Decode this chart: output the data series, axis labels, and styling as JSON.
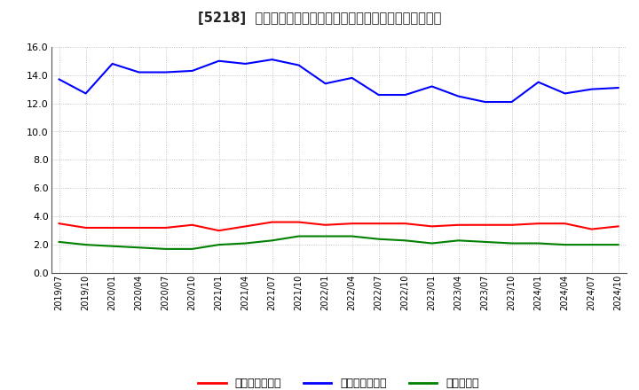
{
  "title": "[5218]  売上債権回転率、買入債務回転率、在庫回転率の推移",
  "x_labels": [
    "2019/07",
    "2019/10",
    "2020/01",
    "2020/04",
    "2020/07",
    "2020/10",
    "2021/01",
    "2021/04",
    "2021/07",
    "2021/10",
    "2022/01",
    "2022/04",
    "2022/07",
    "2022/10",
    "2023/01",
    "2023/04",
    "2023/07",
    "2023/10",
    "2024/01",
    "2024/04",
    "2024/07",
    "2024/10"
  ],
  "blue_values": [
    13.7,
    12.7,
    14.8,
    14.2,
    14.2,
    14.3,
    15.0,
    14.8,
    15.1,
    14.7,
    13.4,
    13.8,
    12.6,
    12.6,
    13.2,
    12.5,
    12.1,
    12.1,
    13.5,
    12.7,
    13.0,
    13.1
  ],
  "red_values": [
    3.5,
    3.2,
    3.2,
    3.2,
    3.2,
    3.4,
    3.0,
    3.3,
    3.6,
    3.6,
    3.4,
    3.5,
    3.5,
    3.5,
    3.3,
    3.4,
    3.4,
    3.4,
    3.5,
    3.5,
    3.1,
    3.3
  ],
  "green_values": [
    2.2,
    2.0,
    1.9,
    1.8,
    1.7,
    1.7,
    2.0,
    2.1,
    2.3,
    2.6,
    2.6,
    2.6,
    2.4,
    2.3,
    2.1,
    2.3,
    2.2,
    2.1,
    2.1,
    2.0,
    2.0,
    2.0
  ],
  "blue_color": "#0000ff",
  "red_color": "#ff0000",
  "green_color": "#008000",
  "ylim": [
    0.0,
    16.0
  ],
  "yticks": [
    0.0,
    2.0,
    4.0,
    6.0,
    8.0,
    10.0,
    12.0,
    14.0,
    16.0
  ],
  "legend_labels": [
    "売上債権回転率",
    "買入債務回転率",
    "在庫回転率"
  ],
  "background_color": "#ffffff",
  "grid_color": "#aaaaaa"
}
